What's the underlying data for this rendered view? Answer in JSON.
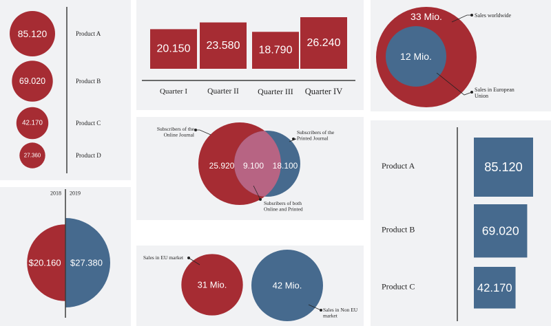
{
  "colors": {
    "red": "#a62c33",
    "blue": "#466a8e",
    "overlap": "#b76483",
    "line": "#3c3c3c",
    "panel": "#f1f2f4"
  },
  "chart_data": [
    {
      "id": "product-circles",
      "type": "bubble",
      "categories": [
        "Product A",
        "Product B",
        "Product C",
        "Product D"
      ],
      "values": [
        85120,
        69020,
        42170,
        27360
      ],
      "labels": [
        "85.120",
        "69.020",
        "42.170",
        "27.360"
      ]
    },
    {
      "id": "quarters",
      "type": "bar",
      "categories": [
        "Quarter I",
        "Quarter II",
        "Quarter III",
        "Quarter IV"
      ],
      "values": [
        20150,
        23580,
        18790,
        26240
      ],
      "labels": [
        "20.150",
        "23.580",
        "18.790",
        "26.240"
      ]
    },
    {
      "id": "sales-nested",
      "type": "nested-circle",
      "outer": {
        "value": 33,
        "label": "33 Mio.",
        "name": "Sales worldwide"
      },
      "inner": {
        "value": 12,
        "label": "12 Mio.",
        "name": "Sales in European Union"
      }
    },
    {
      "id": "year-halves",
      "type": "split-circle",
      "categories": [
        "2018",
        "2019"
      ],
      "values": [
        20160,
        27380
      ],
      "labels": [
        "$20.160",
        "$27.380"
      ]
    },
    {
      "id": "subscribers",
      "type": "venn",
      "sets": [
        {
          "name": "Subscribers of the Online Journal",
          "value": 25920,
          "label": "25.920"
        },
        {
          "name": "Subscribers of the Printed Journal",
          "value": 18100,
          "label": "18.100"
        }
      ],
      "overlap": {
        "name": "Subsribers of both Online and Printed",
        "value": 9100,
        "label": "9.100"
      }
    },
    {
      "id": "markets",
      "type": "bubble",
      "categories": [
        "Sales in EU market",
        "Sales in Non EU market"
      ],
      "values": [
        31,
        42
      ],
      "labels": [
        "31 Mio.",
        "42 Mio."
      ]
    },
    {
      "id": "product-squares",
      "type": "square-area",
      "categories": [
        "Product A",
        "Product B",
        "Product C"
      ],
      "values": [
        85120,
        69020,
        42170
      ],
      "labels": [
        "85.120",
        "69.020",
        "42.170"
      ]
    }
  ]
}
